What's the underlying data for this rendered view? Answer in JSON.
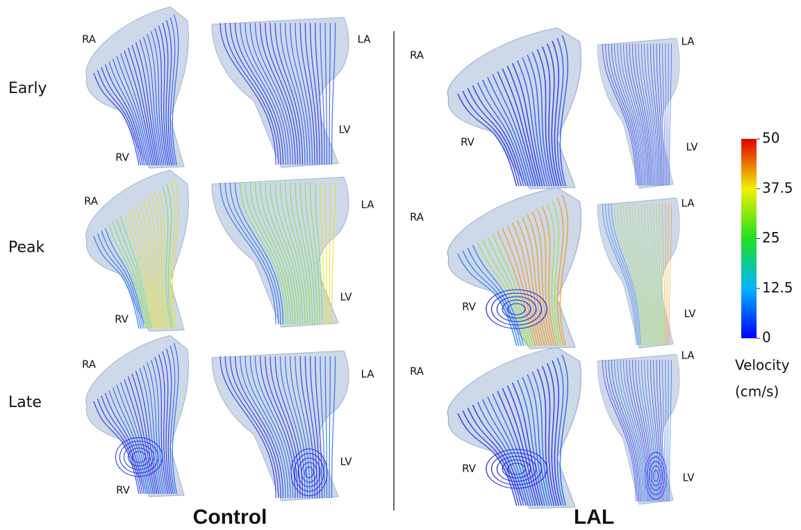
{
  "rows": [
    "Early",
    "Peak",
    "Late"
  ],
  "columns": [
    "Control",
    "LAL"
  ],
  "panels": [
    {
      "ra": "RA",
      "rv": "RV",
      "la": "LA",
      "lv": "LV"
    },
    {
      "ra": "RA",
      "rv": "RV",
      "la": "LA",
      "lv": "LV"
    },
    {
      "ra": "RA",
      "rv": "RV",
      "la": "LA",
      "lv": "LV"
    },
    {
      "ra": "RA",
      "rv": "RV",
      "la": "LA",
      "lv": "LV"
    },
    {
      "ra": "RA",
      "rv": "RV",
      "la": "LA",
      "lv": "LV"
    },
    {
      "ra": "RA",
      "rv": "RV",
      "la": "LA",
      "lv": "LV"
    }
  ],
  "colorbar": {
    "ticks": [
      50,
      37.5,
      25,
      12.5,
      0
    ],
    "title": [
      "Velocity",
      "(cm/s)"
    ]
  }
}
